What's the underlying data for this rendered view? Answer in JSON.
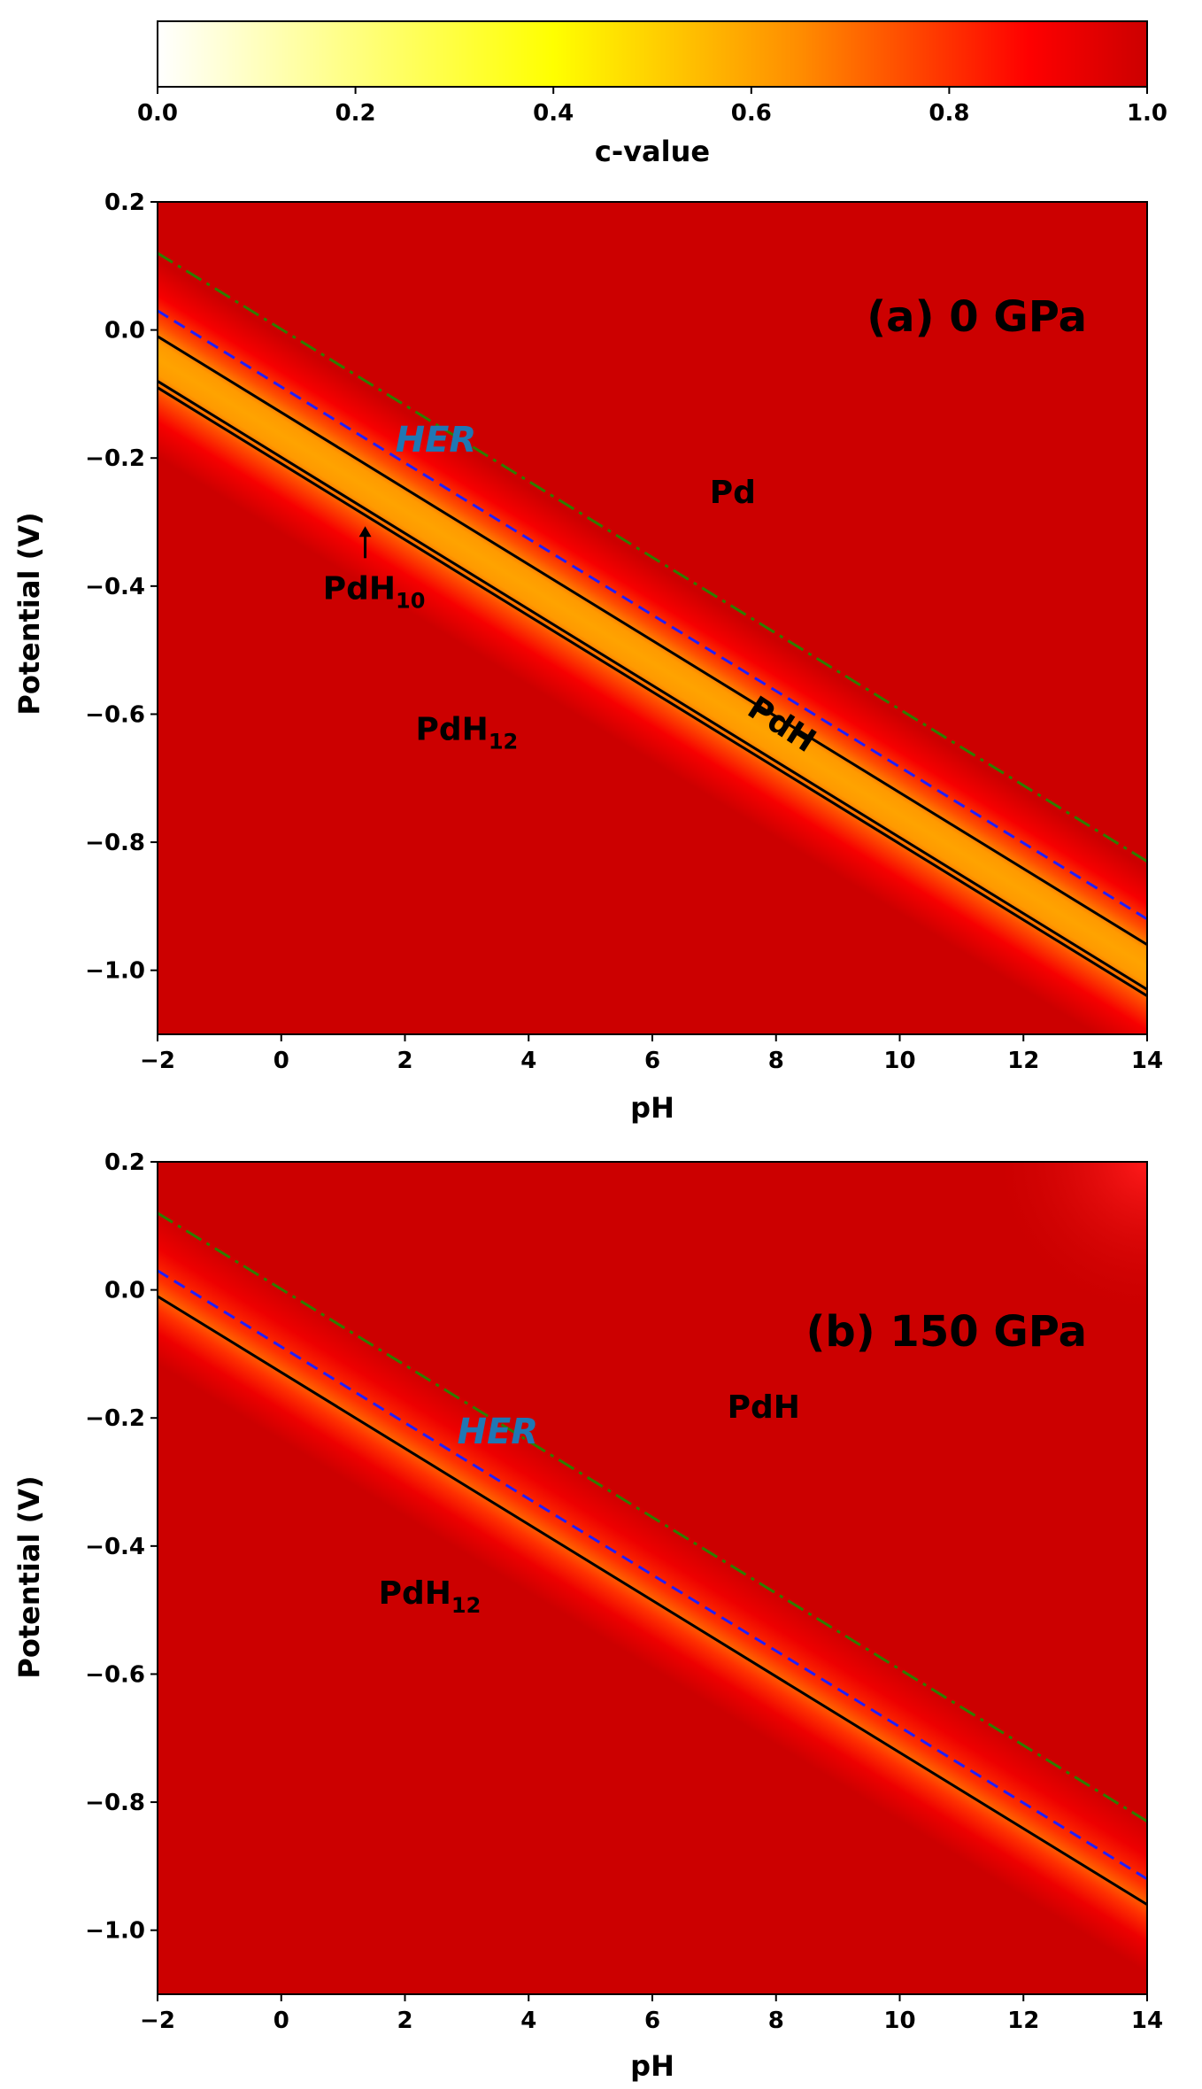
{
  "colorbar": {
    "label": "c-value",
    "ticks": [
      "0.0",
      "0.2",
      "0.4",
      "0.6",
      "0.8",
      "1.0"
    ],
    "range": [
      0,
      1
    ],
    "colors": [
      "#ffffff",
      "#ffff00",
      "#ff8c00",
      "#ff0000",
      "#cc0000"
    ]
  },
  "chart_data": [
    {
      "type": "heatmap",
      "title": "(a) 0 GPa",
      "xlabel": "pH",
      "ylabel": "Potential (V)",
      "xlim": [
        -2,
        14
      ],
      "ylim": [
        -1.1,
        0.2
      ],
      "xticks": [
        "−2",
        "0",
        "2",
        "4",
        "6",
        "8",
        "10",
        "12",
        "14"
      ],
      "yticks": [
        "0.2",
        "0.0",
        "−0.2",
        "−0.4",
        "−0.6",
        "−0.8",
        "−1.0"
      ],
      "boundary_lines": [
        {
          "style": "dash-dot",
          "color": "#2e7d00",
          "x": [
            -2,
            14
          ],
          "y": [
            0.12,
            -0.83
          ]
        },
        {
          "style": "dashed",
          "color": "#1f1fff",
          "label": "HER",
          "x": [
            -2,
            14
          ],
          "y": [
            0.03,
            -0.92
          ]
        },
        {
          "style": "solid",
          "color": "#000000",
          "x": [
            -2,
            14
          ],
          "y": [
            -0.01,
            -0.96
          ]
        },
        {
          "style": "solid",
          "color": "#000000",
          "x": [
            -2,
            14
          ],
          "y": [
            -0.08,
            -1.03
          ]
        },
        {
          "style": "solid",
          "color": "#000000",
          "x": [
            -2,
            14
          ],
          "y": [
            -0.09,
            -1.04
          ]
        }
      ],
      "regions": [
        {
          "label": "Pd",
          "x": 7.3,
          "y": -0.27
        },
        {
          "label": "PdH",
          "x": 8.0,
          "y": -0.63,
          "rotated": true
        },
        {
          "label": "PdH",
          "sub": "10",
          "x": 1.5,
          "y": -0.42,
          "arrow": true
        },
        {
          "label": "PdH",
          "sub": "12",
          "x": 3.0,
          "y": -0.64
        }
      ],
      "her_label": {
        "text": "HER",
        "x": 2.5,
        "y": -0.19
      },
      "band": {
        "center_y_at_ph_minus2": -0.045,
        "slope": -0.059375
      }
    },
    {
      "type": "heatmap",
      "title": "(b) 150 GPa",
      "xlabel": "pH",
      "ylabel": "Potential (V)",
      "xlim": [
        -2,
        14
      ],
      "ylim": [
        -1.1,
        0.2
      ],
      "xticks": [
        "−2",
        "0",
        "2",
        "4",
        "6",
        "8",
        "10",
        "12",
        "14"
      ],
      "yticks": [
        "0.2",
        "0.0",
        "−0.2",
        "−0.4",
        "−0.6",
        "−0.8",
        "−1.0"
      ],
      "boundary_lines": [
        {
          "style": "dash-dot",
          "color": "#2e7d00",
          "x": [
            -2,
            14
          ],
          "y": [
            0.12,
            -0.83
          ]
        },
        {
          "style": "dashed",
          "color": "#1f1fff",
          "label": "HER",
          "x": [
            -2,
            14
          ],
          "y": [
            0.03,
            -0.92
          ]
        },
        {
          "style": "solid",
          "color": "#000000",
          "x": [
            -2,
            14
          ],
          "y": [
            -0.01,
            -0.96
          ]
        }
      ],
      "regions": [
        {
          "label": "PdH",
          "x": 7.8,
          "y": -0.2
        },
        {
          "label": "PdH",
          "sub": "12",
          "x": 2.4,
          "y": -0.49
        }
      ],
      "her_label": {
        "text": "HER",
        "x": 3.5,
        "y": -0.24
      },
      "band": {
        "center_y_at_ph_minus2": 0.005,
        "slope": -0.059375
      }
    }
  ]
}
